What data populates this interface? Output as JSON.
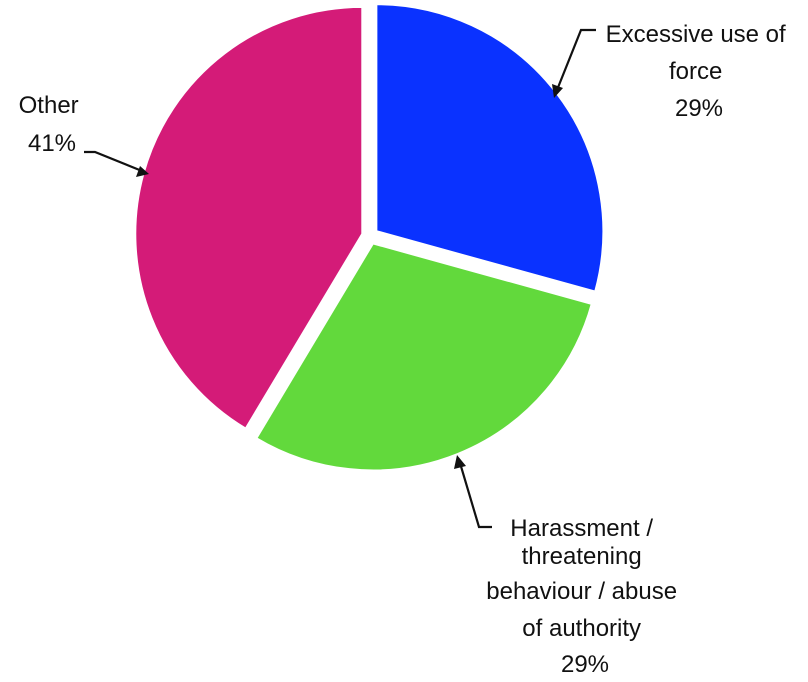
{
  "chart_data": {
    "type": "pie",
    "title": "",
    "slices": [
      {
        "label": "Excessive use of force",
        "value": 29,
        "display": [
          "Excessive use of",
          "force",
          "29%"
        ],
        "color": "#0a32ff"
      },
      {
        "label": "Harassment / threatening behaviour / abuse of authority",
        "value": 29,
        "display": [
          "Harassment /",
          "threatening",
          "behaviour / abuse",
          "of authority",
          "29%"
        ],
        "color": "#62d93c"
      },
      {
        "label": "Other",
        "value": 41,
        "display": [
          "Other",
          "41%"
        ],
        "color": "#d41b78"
      }
    ],
    "start_angle": "12 o'clock",
    "direction": "clockwise",
    "exploded": true,
    "legend": "none"
  }
}
